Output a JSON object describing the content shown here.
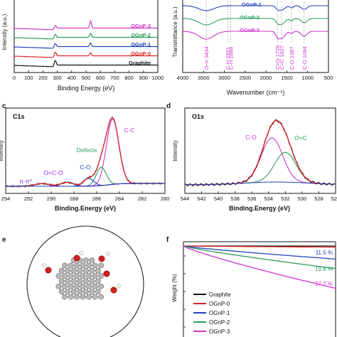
{
  "chart_data": [
    {
      "panel": "a",
      "type": "line",
      "xlabel": "Binding Energy (eV)",
      "ylabel": "Intensity (a.u.)",
      "xticks": [
        "0",
        "100",
        "200",
        "300",
        "400",
        "500",
        "600",
        "700",
        "800",
        "900",
        "1000"
      ],
      "xlim": [
        0,
        1000
      ],
      "series": [
        {
          "name": "OGnP-3",
          "color": "#cc33cc",
          "offset": 5,
          "peaks": [
            {
              "x": 285,
              "h": 0.55
            },
            {
              "x": 532,
              "h": 0.9
            }
          ]
        },
        {
          "name": "OGnP-2",
          "color": "#2e9e5b",
          "offset": 4,
          "peaks": [
            {
              "x": 285,
              "h": 0.6
            },
            {
              "x": 532,
              "h": 0.5
            }
          ]
        },
        {
          "name": "OGnP-1",
          "color": "#2244bb",
          "offset": 3,
          "peaks": [
            {
              "x": 285,
              "h": 0.6
            },
            {
              "x": 532,
              "h": 0.45
            }
          ]
        },
        {
          "name": "OGnP-0",
          "color": "#dd2222",
          "offset": 2,
          "peaks": [
            {
              "x": 285,
              "h": 0.7
            },
            {
              "x": 532,
              "h": 0.4
            }
          ]
        },
        {
          "name": "Graphite",
          "color": "#111111",
          "offset": 1,
          "peaks": [
            {
              "x": 285,
              "h": 0.8
            }
          ]
        }
      ]
    },
    {
      "panel": "b",
      "type": "line",
      "xlabel": "Wavenumber (cm⁻¹)",
      "ylabel": "Transmittance (a.u.)",
      "xticks": [
        "4000",
        "3500",
        "3000",
        "2500",
        "2000",
        "1500",
        "1000",
        "500"
      ],
      "xlim": [
        4000,
        500
      ],
      "series": [
        {
          "name": "OGnP-1",
          "color": "#2244bb"
        },
        {
          "name": "OGnP-2",
          "color": "#2e9e5b"
        },
        {
          "name": "OGnP-3",
          "color": "#cc33cc"
        }
      ],
      "annotations": [
        {
          "label": "O-H 3434",
          "x": 3434
        },
        {
          "label": "C-H 2921",
          "x": 2921
        },
        {
          "label": "C-H 2848",
          "x": 2848
        },
        {
          "label": "C=O 1726",
          "x": 1726
        },
        {
          "label": "C=C 1627",
          "x": 1627
        },
        {
          "label": "C-O 1387",
          "x": 1387
        },
        {
          "label": "C-O 1084",
          "x": 1084
        }
      ]
    },
    {
      "panel": "c",
      "type": "line",
      "title": "C1s",
      "xlabel": "Binding.Energy (eV)",
      "ylabel": "Intensity",
      "xticks": [
        "294",
        "292",
        "290",
        "288",
        "286",
        "284",
        "282",
        "280"
      ],
      "xlim": [
        294,
        280
      ],
      "components": [
        {
          "name": "C-C",
          "center": 284.6,
          "height": 1.0,
          "width": 1.0,
          "color": "#cc33cc"
        },
        {
          "name": "Defects",
          "center": 285.6,
          "height": 0.28,
          "width": 0.8,
          "color": "#2e9e5b"
        },
        {
          "name": "C-O",
          "center": 286.7,
          "height": 0.12,
          "width": 0.8,
          "color": "#2244bb"
        },
        {
          "name": "O=C-O",
          "center": 288.6,
          "height": 0.06,
          "width": 1.0,
          "color": "#8a2be2"
        },
        {
          "name": "π-π*",
          "center": 290.8,
          "height": 0.04,
          "width": 1.2,
          "color": "#8a2be2"
        }
      ]
    },
    {
      "panel": "d",
      "type": "line",
      "title": "O1s",
      "xlabel": "Binding.Energy (eV)",
      "ylabel": "Intensity",
      "xticks": [
        "544",
        "542",
        "540",
        "538",
        "536",
        "534",
        "532",
        "530",
        "528",
        "526"
      ],
      "xlim": [
        544,
        526
      ],
      "components": [
        {
          "name": "C-O",
          "center": 533.6,
          "height": 0.62,
          "width": 1.5,
          "color": "#cc33cc"
        },
        {
          "name": "O=C",
          "center": 532.0,
          "height": 0.42,
          "width": 1.5,
          "color": "#2e9e5b"
        }
      ]
    },
    {
      "panel": "f",
      "type": "line",
      "ylabel": "Weight (%)",
      "series": [
        {
          "name": "Graphite",
          "color": "#111111",
          "end_loss": 0
        },
        {
          "name": "OGnP-0",
          "color": "#dd2222",
          "end_loss": 1
        },
        {
          "name": "OGnP-1",
          "color": "#2244bb",
          "end_loss": 11.5
        },
        {
          "name": "OGnP-2",
          "color": "#2e9e5b",
          "end_loss": 19.8
        },
        {
          "name": "OGnP-3",
          "color": "#cc33cc",
          "end_loss": 37.2
        }
      ],
      "labels": [
        {
          "text": "11.5 %",
          "color": "#2244bb"
        },
        {
          "text": "19.8 %",
          "color": "#2e9e5b"
        },
        {
          "text": "37.2 %",
          "color": "#cc33cc"
        }
      ]
    }
  ],
  "panels": {
    "c": {
      "letter": "c"
    },
    "d": {
      "letter": "d"
    },
    "e": {
      "letter": "e"
    },
    "f": {
      "letter": "f"
    }
  }
}
